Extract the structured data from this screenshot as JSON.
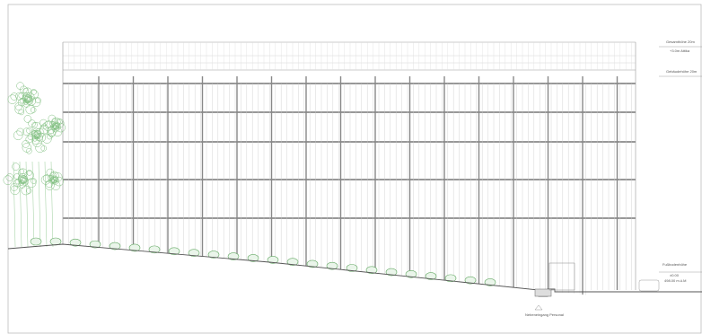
{
  "annotations": {
    "total_height": "Gesamthöhe 20m",
    "attic": "+3.0m Attika",
    "building_height": "Gebäudehöhe 20m",
    "floor_level": "Fußbodenhöhe",
    "level_zero": "±0.00",
    "altitude": "498.00 m.ü.M",
    "entrance": "Nebeneingang Personal"
  }
}
